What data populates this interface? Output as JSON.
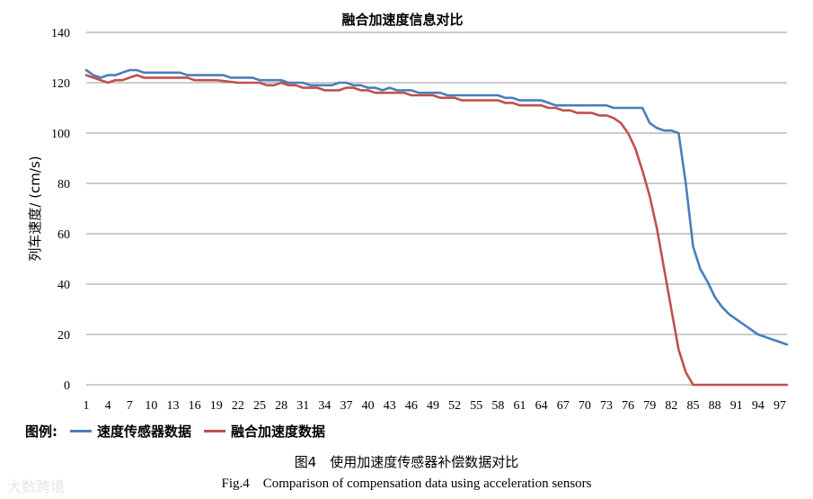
{
  "chart_data": {
    "type": "line",
    "title": "融合加速度信息对比",
    "xlabel": "",
    "ylabel": "列车速度/ (cm/s)",
    "ylim": [
      0,
      140
    ],
    "yticks": [
      0,
      20,
      40,
      60,
      80,
      100,
      120,
      140
    ],
    "xlim": [
      1,
      98
    ],
    "xticks": [
      1,
      4,
      7,
      10,
      13,
      16,
      19,
      22,
      25,
      28,
      31,
      34,
      37,
      40,
      43,
      46,
      49,
      52,
      55,
      58,
      61,
      64,
      67,
      70,
      73,
      76,
      79,
      82,
      85,
      88,
      91,
      94,
      97
    ],
    "grid": "horizontal",
    "legend_position": "bottom-left",
    "legend_title": "图例:",
    "series": [
      {
        "name": "速度传感器数据",
        "color": "#4a7ebb",
        "x": [
          1,
          2,
          3,
          4,
          5,
          6,
          7,
          8,
          9,
          10,
          13,
          14,
          15,
          16,
          19,
          20,
          21,
          22,
          23,
          24,
          25,
          28,
          29,
          30,
          31,
          32,
          33,
          34,
          35,
          36,
          37,
          38,
          39,
          40,
          41,
          42,
          43,
          44,
          45,
          46,
          47,
          48,
          49,
          50,
          51,
          52,
          55,
          58,
          59,
          60,
          61,
          64,
          65,
          66,
          67,
          70,
          73,
          74,
          75,
          76,
          77,
          78,
          79,
          80,
          81,
          82,
          83,
          84,
          85,
          86,
          87,
          88,
          89,
          90,
          91,
          92,
          93,
          94,
          95,
          96,
          97,
          98
        ],
        "values": [
          125,
          123,
          122,
          123,
          123,
          124,
          125,
          125,
          124,
          124,
          124,
          124,
          123,
          123,
          123,
          123,
          122,
          122,
          122,
          122,
          121,
          121,
          120,
          120,
          120,
          119,
          119,
          119,
          119,
          120,
          120,
          119,
          119,
          118,
          118,
          117,
          118,
          117,
          117,
          117,
          116,
          116,
          116,
          116,
          115,
          115,
          115,
          115,
          114,
          114,
          113,
          113,
          112,
          111,
          111,
          111,
          111,
          110,
          110,
          110,
          110,
          110,
          104,
          102,
          101,
          101,
          100,
          80,
          55,
          46,
          41,
          35,
          31,
          28,
          26,
          24,
          22,
          20,
          19,
          18,
          17,
          16
        ]
      },
      {
        "name": "融合加速度数据",
        "color": "#c0504d",
        "x": [
          1,
          2,
          3,
          4,
          5,
          6,
          7,
          8,
          9,
          10,
          11,
          12,
          13,
          14,
          15,
          16,
          19,
          22,
          25,
          26,
          27,
          28,
          29,
          30,
          31,
          32,
          33,
          34,
          35,
          36,
          37,
          38,
          39,
          40,
          41,
          42,
          43,
          44,
          45,
          46,
          47,
          48,
          49,
          50,
          51,
          52,
          53,
          54,
          55,
          58,
          59,
          60,
          61,
          62,
          63,
          64,
          65,
          66,
          67,
          68,
          69,
          70,
          71,
          72,
          73,
          74,
          75,
          76,
          77,
          78,
          79,
          80,
          81,
          82,
          83,
          84,
          85,
          86,
          88,
          91,
          94,
          97,
          98
        ],
        "values": [
          123,
          122,
          121,
          120,
          121,
          121,
          122,
          123,
          122,
          122,
          122,
          122,
          122,
          122,
          122,
          121,
          121,
          120,
          120,
          119,
          119,
          120,
          119,
          119,
          118,
          118,
          118,
          117,
          117,
          117,
          118,
          118,
          117,
          117,
          116,
          116,
          116,
          116,
          116,
          115,
          115,
          115,
          115,
          114,
          114,
          114,
          113,
          113,
          113,
          113,
          112,
          112,
          111,
          111,
          111,
          111,
          110,
          110,
          109,
          109,
          108,
          108,
          108,
          107,
          107,
          106,
          104,
          100,
          94,
          85,
          75,
          62,
          46,
          30,
          14,
          5,
          0,
          0,
          0,
          0,
          0,
          0,
          0
        ]
      }
    ]
  },
  "caption": {
    "chinese": "图4　使用加速度传感器补偿数据对比",
    "english": "Fig.4　Comparison of compensation data using acceleration sensors"
  },
  "watermark": "大数跨境"
}
